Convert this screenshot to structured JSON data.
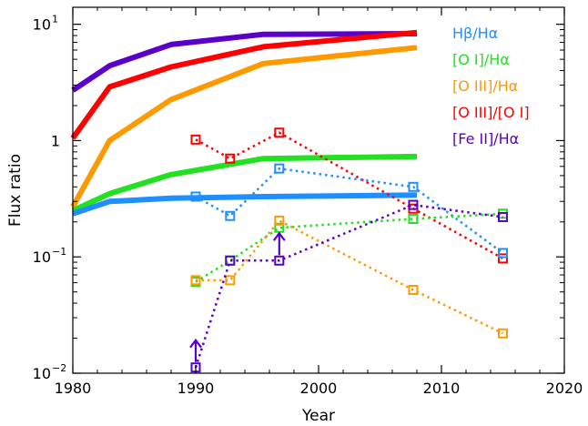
{
  "chart_data": {
    "type": "line",
    "title": "",
    "xlabel": "Year",
    "ylabel": "Flux ratio",
    "xlim": [
      1980,
      2020
    ],
    "ylim": [
      0.01,
      14
    ],
    "yscale": "log",
    "grid": false,
    "legend_position": "top-right",
    "x_ticks": [
      {
        "value": 1980,
        "label": "1980"
      },
      {
        "value": 1990,
        "label": "1990"
      },
      {
        "value": 2000,
        "label": "2000"
      },
      {
        "value": 2010,
        "label": "2010"
      },
      {
        "value": 2020,
        "label": "2020"
      }
    ],
    "y_ticks": [
      {
        "value": 0.01,
        "base": "10",
        "exp": "−2"
      },
      {
        "value": 0.1,
        "base": "10",
        "exp": "−1"
      },
      {
        "value": 1,
        "base": "1",
        "exp": ""
      },
      {
        "value": 10,
        "base": "10",
        "exp": "1"
      }
    ],
    "legend": [
      {
        "name": "Hβ/Hα",
        "color": "#1f8fff"
      },
      {
        "name": "[O I]/Hα",
        "color": "#22e022"
      },
      {
        "name": "[O III]/Hα",
        "color": "#ff9900"
      },
      {
        "name": "[O III]/[O I]",
        "color": "#ff0000"
      },
      {
        "name": "[Fe II]/Hα",
        "color": "#5b00c8"
      }
    ],
    "model_lines": [
      {
        "name": "[Fe II]/Hα",
        "color": "#5b00c8",
        "x": [
          1980,
          1983,
          1988,
          1995.5,
          2008
        ],
        "y": [
          2.7,
          4.4,
          6.7,
          8.2,
          8.3
        ]
      },
      {
        "name": "[O III]/[O I]",
        "color": "#ff0000",
        "x": [
          1980,
          1983,
          1988,
          1995.5,
          2008
        ],
        "y": [
          1.05,
          2.9,
          4.3,
          6.4,
          8.5
        ]
      },
      {
        "name": "[O III]/Hα",
        "color": "#ff9900",
        "x": [
          1980,
          1983,
          1988,
          1995.5,
          2008
        ],
        "y": [
          0.27,
          1.0,
          2.25,
          4.6,
          6.3
        ]
      },
      {
        "name": "[O I]/Hα",
        "color": "#22e022",
        "x": [
          1980,
          1983,
          1988,
          1995.5,
          2008
        ],
        "y": [
          0.25,
          0.35,
          0.51,
          0.7,
          0.73
        ]
      },
      {
        "name": "Hβ/Hα",
        "color": "#1f8fff",
        "x": [
          1980,
          1983,
          1988,
          1995.5,
          2008
        ],
        "y": [
          0.235,
          0.3,
          0.32,
          0.33,
          0.34
        ]
      }
    ],
    "observed_series": [
      {
        "name": "[O III]/[O I]",
        "color": "#ff0000",
        "x": [
          1990,
          1992.8,
          1996.8,
          2007.7,
          2015
        ],
        "y": [
          1.02,
          0.7,
          1.17,
          0.26,
          0.097
        ]
      },
      {
        "name": "Hβ/Hα",
        "color": "#1f8fff",
        "x": [
          1990,
          1992.8,
          1996.8,
          2007.7,
          2015
        ],
        "y": [
          0.33,
          0.225,
          0.575,
          0.4,
          0.108
        ]
      },
      {
        "name": "[O I]/Hα",
        "color": "#22e022",
        "x": [
          1990,
          1992.8,
          1996.8,
          2007.7,
          2015
        ],
        "y": [
          0.061,
          0.093,
          0.178,
          0.212,
          0.235
        ]
      },
      {
        "name": "[O III]/Hα",
        "color": "#ff9900",
        "x": [
          1990,
          1992.8,
          1996.8,
          2007.7,
          2015
        ],
        "y": [
          0.063,
          0.063,
          0.205,
          0.052,
          0.022
        ]
      },
      {
        "name": "[Fe II]/Hα",
        "color": "#5b00c8",
        "x": [
          1990,
          1992.8,
          1996.8,
          2007.7,
          2015
        ],
        "y": [
          0.0112,
          0.093,
          0.093,
          0.28,
          0.22
        ]
      }
    ],
    "lower_limits": [
      {
        "series": "[Fe II]/Hα",
        "color": "#5b00c8",
        "x": 1990,
        "y": 0.0112
      },
      {
        "series": "[Fe II]/Hα",
        "color": "#5b00c8",
        "x": 1996.8,
        "y": 0.093
      }
    ]
  }
}
